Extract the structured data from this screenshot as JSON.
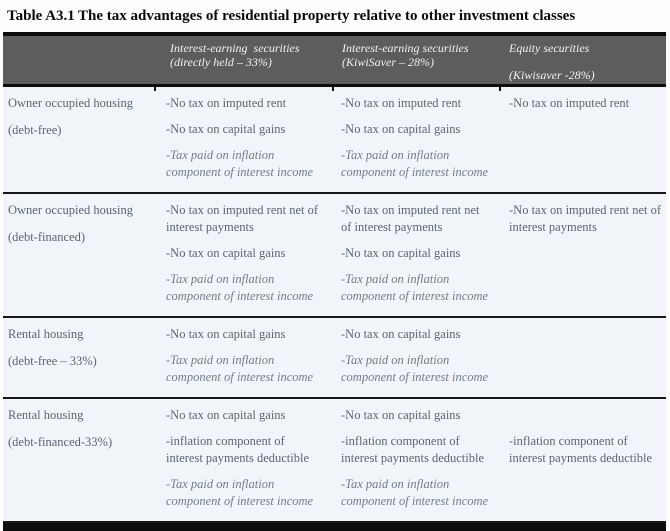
{
  "title": {
    "label": "Table A3.1",
    "text": "The tax advantages of residential property relative to other investment classes"
  },
  "colors": {
    "header_bg": "#5d5d5d",
    "header_text": "#f3f2ed",
    "row_bg": "#f1f5f9",
    "rule": "#0c0c0c",
    "body_text": "#5b6470",
    "italic_text": "#727c88"
  },
  "table": {
    "header": {
      "col1_line1": "Interest-earning  securities",
      "col1_line2": "(directly held – 33%)",
      "col2_line1": "Interest-earning securities",
      "col2_line2": "(KiwiSaver – 28%)",
      "col3_line1": "Equity securities",
      "col3_line2": "(Kiwisaver -28%)"
    },
    "rows": [
      {
        "label_line1": "Owner occupied housing",
        "label_line2": "(debt-free)",
        "c1": [
          "-No tax on imputed rent",
          "-No tax on capital gains",
          "-Tax paid on inflation component of interest income"
        ],
        "c2": [
          "-No tax on imputed rent",
          "-No tax on capital gains",
          "-Tax paid on inflation component of interest income"
        ],
        "c3": [
          "-No tax on imputed rent"
        ]
      },
      {
        "label_line1": "Owner occupied housing",
        "label_line2": "(debt-financed)",
        "c1": [
          "-No tax on imputed rent net of interest payments",
          "-No tax on capital gains",
          "-Tax paid on inflation component of interest income"
        ],
        "c2": [
          "-No tax on imputed rent net of interest payments",
          "-No tax on capital gains",
          "-Tax paid on inflation component of interest income"
        ],
        "c3": [
          "-No tax on imputed rent net of interest payments"
        ]
      },
      {
        "label_line1": "Rental housing",
        "label_line2": "(debt-free – 33%)",
        "c1": [
          "-No tax on capital gains",
          "-Tax paid on inflation component of interest income"
        ],
        "c2": [
          "-No tax on capital gains",
          "-Tax paid on inflation component of interest income"
        ],
        "c3": []
      },
      {
        "label_line1": "Rental housing",
        "label_line2": "(debt-financed-33%)",
        "c1": [
          "-No tax on capital gains",
          "-inflation component of interest payments deductible",
          "-Tax paid on inflation component of interest income"
        ],
        "c2": [
          "-No tax on capital gains",
          "-inflation component of interest payments deductible",
          "-Tax paid on inflation component of interest income"
        ],
        "c3": [
          "-inflation component of interest payments deductible"
        ]
      }
    ]
  }
}
